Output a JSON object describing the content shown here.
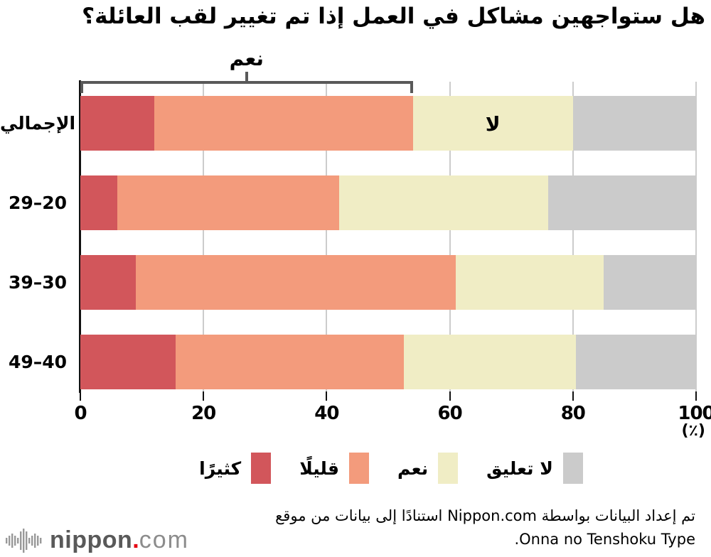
{
  "title": "هل ستواجهين مشاكل في العمل إذا تم تغيير لقب العائلة؟",
  "annotations": {
    "yes_bracket_label": "نعم",
    "no_label": "لا",
    "unit_label": "(٪)"
  },
  "chart_data": {
    "type": "bar",
    "orientation": "horizontal",
    "stacked": true,
    "title": "هل ستواجهين مشاكل في العمل إذا تم تغيير لقب العائلة؟",
    "categories": [
      "الإجمالي",
      "29–20",
      "39–30",
      "49–40"
    ],
    "series": [
      {
        "name": "كثيرًا",
        "color": "#d2565b",
        "values": [
          12,
          6,
          9,
          15.5
        ]
      },
      {
        "name": "قليلًا",
        "color": "#f39b7c",
        "values": [
          42,
          36,
          52,
          37
        ]
      },
      {
        "name": "نعم",
        "color": "#f0edc5",
        "values": [
          26,
          34,
          24,
          28
        ]
      },
      {
        "name": "لا تعليق",
        "color": "#cbcbcb",
        "values": [
          20,
          24,
          15,
          19.5
        ]
      }
    ],
    "xlim": [
      0,
      100
    ],
    "xticks": [
      0,
      20,
      40,
      60,
      80,
      100
    ],
    "xlabel": "(٪)",
    "grid": true,
    "gridline_color": "#cccccc",
    "axis_color": "#111111",
    "bracket_color": "#595959",
    "yes_bracket_span_series": 2,
    "legend_position": "bottom"
  },
  "footer": {
    "line1": "تم إعداد البيانات بواسطة Nippon.com استنادًا إلى بيانات من موقع",
    "line2": "Onna no Tenshoku Type."
  },
  "logo": {
    "icon": "soundwave-icon",
    "brand_bold": "nippon",
    "brand_dot": ".",
    "brand_light": "com",
    "brand_color": "#595959",
    "dot_color": "#e60012"
  }
}
